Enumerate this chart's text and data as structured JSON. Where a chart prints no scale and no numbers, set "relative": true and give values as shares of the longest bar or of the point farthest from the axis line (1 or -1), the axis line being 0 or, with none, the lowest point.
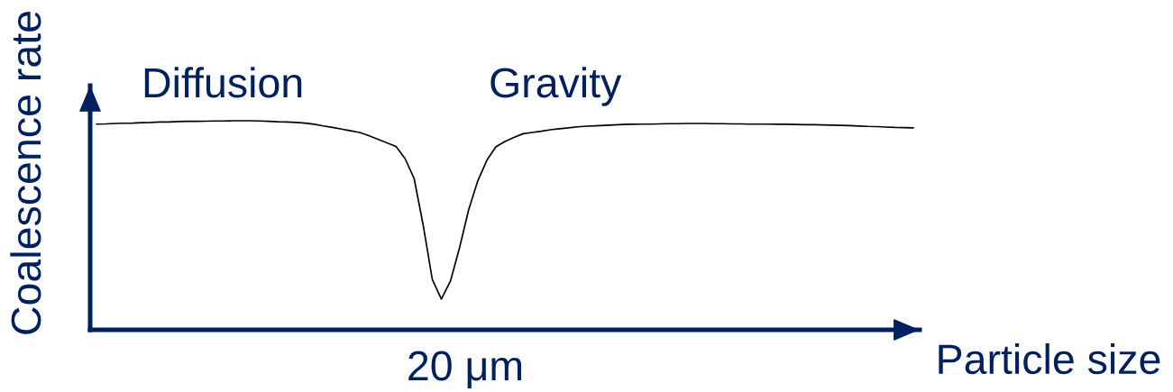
{
  "chart_data": {
    "type": "line",
    "relative": true,
    "xlabel": "Particle size",
    "ylabel": "Coalescence rate",
    "annotations": [
      "Diffusion",
      "Gravity",
      "20 μm"
    ],
    "line_style": "solid",
    "categories": [
      null,
      null,
      null,
      null,
      null,
      null,
      null,
      null,
      null,
      null,
      null,
      null,
      null,
      null,
      null,
      null,
      null,
      null,
      null,
      null,
      null,
      null,
      null,
      null,
      null,
      null,
      null,
      null,
      null,
      null,
      null,
      null,
      null,
      null,
      null,
      null,
      null,
      null,
      null,
      null,
      null,
      null,
      null,
      null,
      null,
      null,
      null,
      null,
      null,
      null,
      null,
      null,
      null,
      null,
      null,
      null,
      null,
      null,
      null,
      null,
      null,
      null,
      null,
      null,
      null,
      null,
      null,
      null,
      null,
      null,
      null,
      null,
      null,
      null,
      null,
      null,
      null,
      null,
      null,
      null,
      null,
      null,
      null,
      null,
      null,
      null,
      null,
      null,
      null,
      null,
      null
    ],
    "series": [
      {
        "color": "#000000",
        "values": [
          0.984,
          0.985,
          0.987,
          0.988,
          0.989,
          0.991,
          0.992,
          0.994,
          0.994,
          0.996,
          0.997,
          0.997,
          0.998,
          0.999,
          0.999,
          1.0,
          1.0,
          1.0,
          0.999,
          0.997,
          0.995,
          0.994,
          0.992,
          0.989,
          0.983,
          0.975,
          0.968,
          0.96,
          0.952,
          0.944,
          0.929,
          0.912,
          0.894,
          0.877,
          0.819,
          0.724,
          0.5,
          0.241,
          0.147,
          0.233,
          0.392,
          0.573,
          0.711,
          0.81,
          0.875,
          0.901,
          0.92,
          0.938,
          0.944,
          0.95,
          0.957,
          0.962,
          0.966,
          0.971,
          0.974,
          0.976,
          0.978,
          0.98,
          0.982,
          0.983,
          0.984,
          0.984,
          0.985,
          0.986,
          0.986,
          0.987,
          0.987,
          0.987,
          0.986,
          0.986,
          0.985,
          0.985,
          0.984,
          0.984,
          0.984,
          0.983,
          0.983,
          0.982,
          0.981,
          0.981,
          0.98,
          0.979,
          0.978,
          0.977,
          0.975,
          0.973,
          0.972,
          0.97,
          0.968,
          0.967,
          0.966
        ]
      }
    ]
  }
}
